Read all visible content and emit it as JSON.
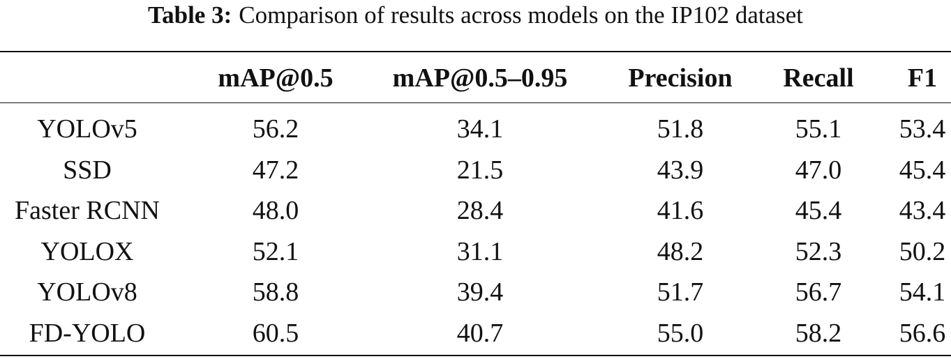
{
  "caption": {
    "label": "Table 3:",
    "text": "Comparison of results across models on the IP102 dataset"
  },
  "table": {
    "header": [
      "mAP@0.5",
      "mAP@0.5–0.95",
      "Precision",
      "Recall",
      "F1"
    ],
    "rows": [
      {
        "model": "YOLOv5",
        "values": [
          "56.2",
          "34.1",
          "51.8",
          "55.1",
          "53.4"
        ]
      },
      {
        "model": "SSD",
        "values": [
          "47.2",
          "21.5",
          "43.9",
          "47.0",
          "45.4"
        ]
      },
      {
        "model": "Faster RCNN",
        "values": [
          "48.0",
          "28.4",
          "41.6",
          "45.4",
          "43.4"
        ]
      },
      {
        "model": "YOLOX",
        "values": [
          "52.1",
          "31.1",
          "48.2",
          "52.3",
          "50.2"
        ]
      },
      {
        "model": "YOLOv8",
        "values": [
          "58.8",
          "39.4",
          "51.7",
          "56.7",
          "54.1"
        ]
      },
      {
        "model": "FD-YOLO",
        "values": [
          "60.5",
          "40.7",
          "55.0",
          "58.2",
          "56.6"
        ]
      }
    ]
  }
}
